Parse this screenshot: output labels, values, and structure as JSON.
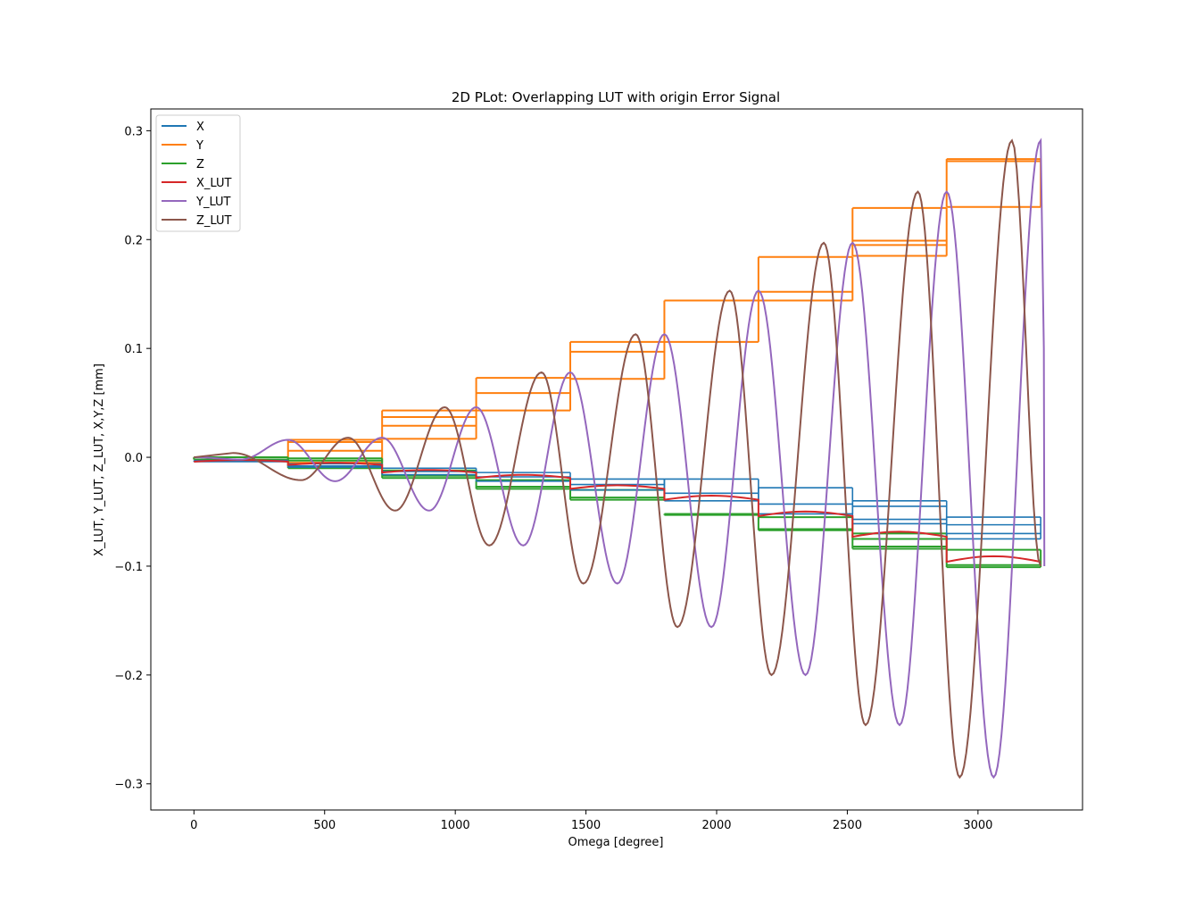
{
  "chart_data": {
    "type": "line",
    "title": "2D PLot: Overlapping LUT with origin Error Signal",
    "xlabel": "Omega [degree]",
    "ylabel": "X_LUT, Y_LUT, Z_LUT, X,Y,Z [mm]",
    "xlim": [
      -165,
      3400
    ],
    "ylim": [
      -0.324,
      0.32
    ],
    "x_ticks": [
      0,
      500,
      1000,
      1500,
      2000,
      2500,
      3000
    ],
    "x_tick_labels": [
      "0",
      "500",
      "1000",
      "1500",
      "2000",
      "2500",
      "3000"
    ],
    "y_ticks": [
      -0.3,
      -0.2,
      -0.1,
      0.0,
      0.1,
      0.2,
      0.3
    ],
    "y_tick_labels": [
      "−0.3",
      "−0.2",
      "−0.1",
      "0.0",
      "0.1",
      "0.2",
      "0.3"
    ],
    "grid": false,
    "legend_position": "upper-left",
    "steps": {
      "x_edges": [
        0,
        360,
        720,
        1080,
        1440,
        1800,
        2160,
        2520,
        2880,
        3240
      ],
      "X_levels": [
        [
          -0.004,
          -0.003
        ],
        [
          -0.009,
          -0.008,
          -0.006
        ],
        [
          -0.016,
          -0.013,
          -0.01
        ],
        [
          -0.022,
          -0.018,
          -0.014
        ],
        [
          -0.03,
          -0.025,
          -0.02
        ],
        [
          -0.04,
          -0.033,
          -0.02
        ],
        [
          -0.052,
          -0.043,
          -0.028
        ],
        [
          -0.061,
          -0.057,
          -0.045,
          -0.04
        ],
        [
          -0.075,
          -0.07,
          -0.062,
          -0.055
        ],
        [
          -0.096,
          -0.085,
          -0.075
        ]
      ],
      "Y_levels": [
        [
          0.0,
          -0.002
        ],
        [
          0.016,
          0.014,
          0.006,
          -0.005
        ],
        [
          0.043,
          0.037,
          0.029,
          0.017
        ],
        [
          0.073,
          0.059,
          0.043
        ],
        [
          0.106,
          0.097,
          0.072
        ],
        [
          0.144,
          0.106
        ],
        [
          0.184,
          0.152,
          0.144
        ],
        [
          0.229,
          0.199,
          0.195,
          0.185
        ],
        [
          0.274,
          0.272,
          0.23
        ]
      ],
      "Z_levels": [
        [
          0.0,
          -0.002
        ],
        [
          -0.001,
          -0.003,
          -0.01
        ],
        [
          -0.019,
          -0.017,
          -0.012
        ],
        [
          -0.029,
          -0.027,
          -0.021
        ],
        [
          -0.039,
          -0.037,
          -0.03
        ],
        [
          -0.053,
          -0.052
        ],
        [
          -0.067,
          -0.066,
          -0.055
        ],
        [
          -0.084,
          -0.082,
          -0.075,
          -0.07
        ],
        [
          -0.101,
          -0.099,
          -0.085
        ]
      ]
    },
    "series": [
      {
        "name": "X",
        "color": "#1f77b4",
        "kind": "step"
      },
      {
        "name": "Y",
        "color": "#ff7f0e",
        "kind": "step"
      },
      {
        "name": "Z",
        "color": "#2ca02c",
        "kind": "step"
      },
      {
        "name": "X_LUT",
        "color": "#d62728",
        "kind": "lut"
      },
      {
        "name": "Y_LUT",
        "color": "#9467bd",
        "kind": "lut"
      },
      {
        "name": "Z_LUT",
        "color": "#8c564b",
        "kind": "lut"
      }
    ],
    "lut_waves": {
      "period_deg": 360,
      "Y_LUT_peaks": [
        [
          0,
          0.0
        ],
        [
          360,
          0.016
        ],
        [
          720,
          0.018
        ],
        [
          1080,
          0.046
        ],
        [
          1440,
          0.078
        ],
        [
          1800,
          0.113
        ],
        [
          2160,
          0.153
        ],
        [
          2520,
          0.197
        ],
        [
          2880,
          0.244
        ],
        [
          3240,
          0.291
        ]
      ],
      "Y_LUT_troughs": [
        [
          180,
          -0.002
        ],
        [
          540,
          -0.022
        ],
        [
          900,
          -0.049
        ],
        [
          1260,
          -0.081
        ],
        [
          1620,
          -0.116
        ],
        [
          1980,
          -0.156
        ],
        [
          2340,
          -0.2
        ],
        [
          2700,
          -0.246
        ],
        [
          3060,
          -0.294
        ]
      ],
      "Z_LUT_peaks": [
        [
          150,
          0.004
        ],
        [
          590,
          0.018
        ],
        [
          960,
          0.046
        ],
        [
          1330,
          0.078
        ],
        [
          1690,
          0.113
        ],
        [
          2050,
          0.153
        ],
        [
          2410,
          0.197
        ],
        [
          2770,
          0.244
        ],
        [
          3130,
          0.291
        ]
      ],
      "Z_LUT_troughs": [
        [
          410,
          -0.021
        ],
        [
          770,
          -0.049
        ],
        [
          1130,
          -0.081
        ],
        [
          1490,
          -0.116
        ],
        [
          1850,
          -0.156
        ],
        [
          2210,
          -0.2
        ],
        [
          2570,
          -0.246
        ],
        [
          2930,
          -0.294
        ]
      ],
      "X_LUT_levels": [
        -0.004,
        -0.007,
        -0.014,
        -0.019,
        -0.029,
        -0.039,
        -0.054,
        -0.073,
        -0.096
      ]
    }
  }
}
